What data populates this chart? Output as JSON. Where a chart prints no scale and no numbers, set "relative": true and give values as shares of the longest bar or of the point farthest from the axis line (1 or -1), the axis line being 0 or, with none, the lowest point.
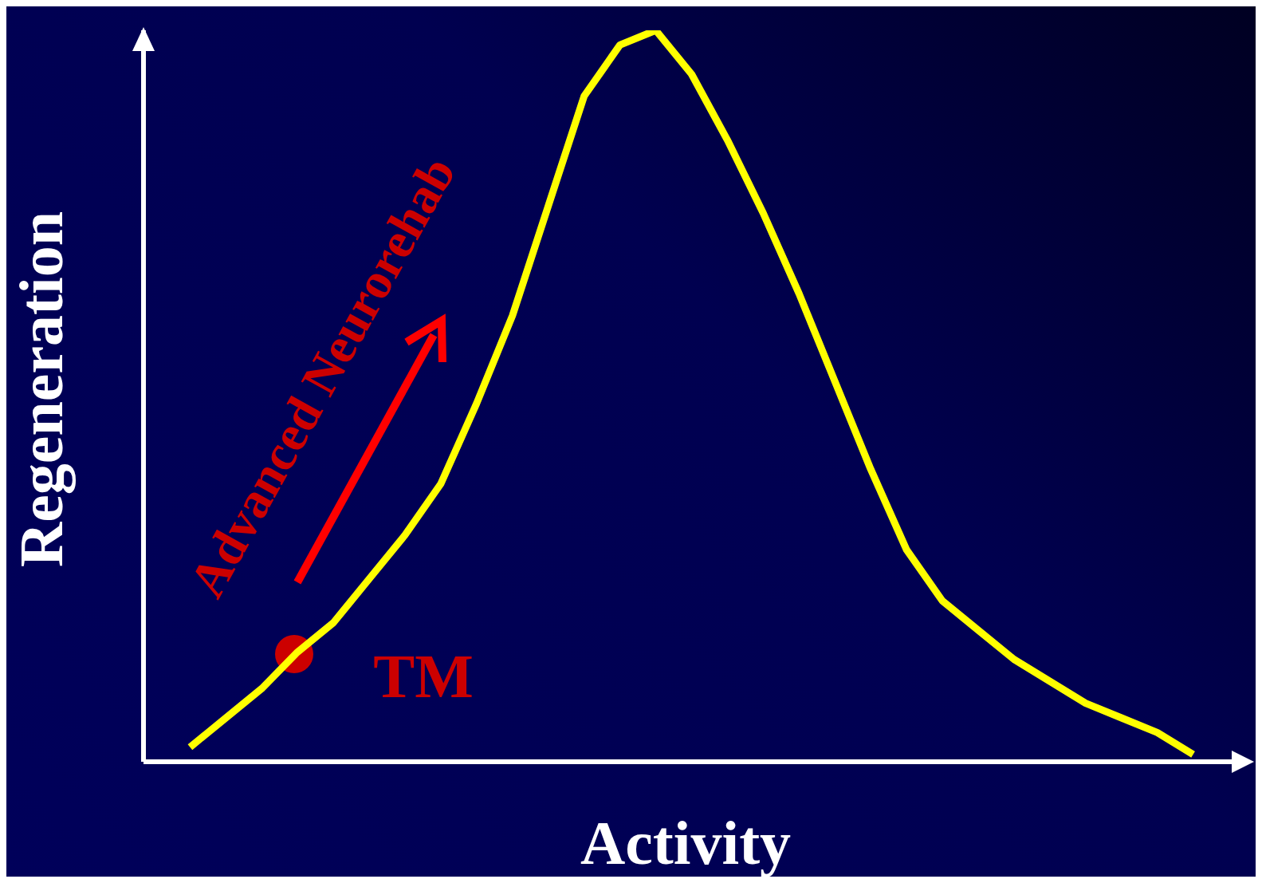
{
  "chart_data": {
    "type": "line",
    "relative": true,
    "xlabel": "Activity",
    "ylabel": "Regeneration",
    "categories": [
      null,
      null,
      null,
      null,
      null,
      null,
      null,
      null,
      null,
      null,
      null,
      null,
      null,
      null,
      null,
      null,
      null,
      null,
      null,
      null,
      null,
      null,
      null,
      null,
      null,
      null,
      null,
      null,
      null
    ],
    "series": [
      {
        "color": "#ffff00",
        "values": [
          0.02,
          0.06,
          0.1,
          0.15,
          0.19,
          0.25,
          0.31,
          0.38,
          0.49,
          0.61,
          0.76,
          0.91,
          0.98,
          1.0,
          0.94,
          0.85,
          0.75,
          0.64,
          0.52,
          0.4,
          0.29,
          0.22,
          0.18,
          0.14,
          0.11,
          0.08,
          0.06,
          0.04,
          0.01
        ]
      }
    ],
    "annotations": [
      "Advanced Neurorehab",
      "TM"
    ],
    "grid": false,
    "legend": false,
    "marker": "none",
    "line_style": "solid"
  }
}
